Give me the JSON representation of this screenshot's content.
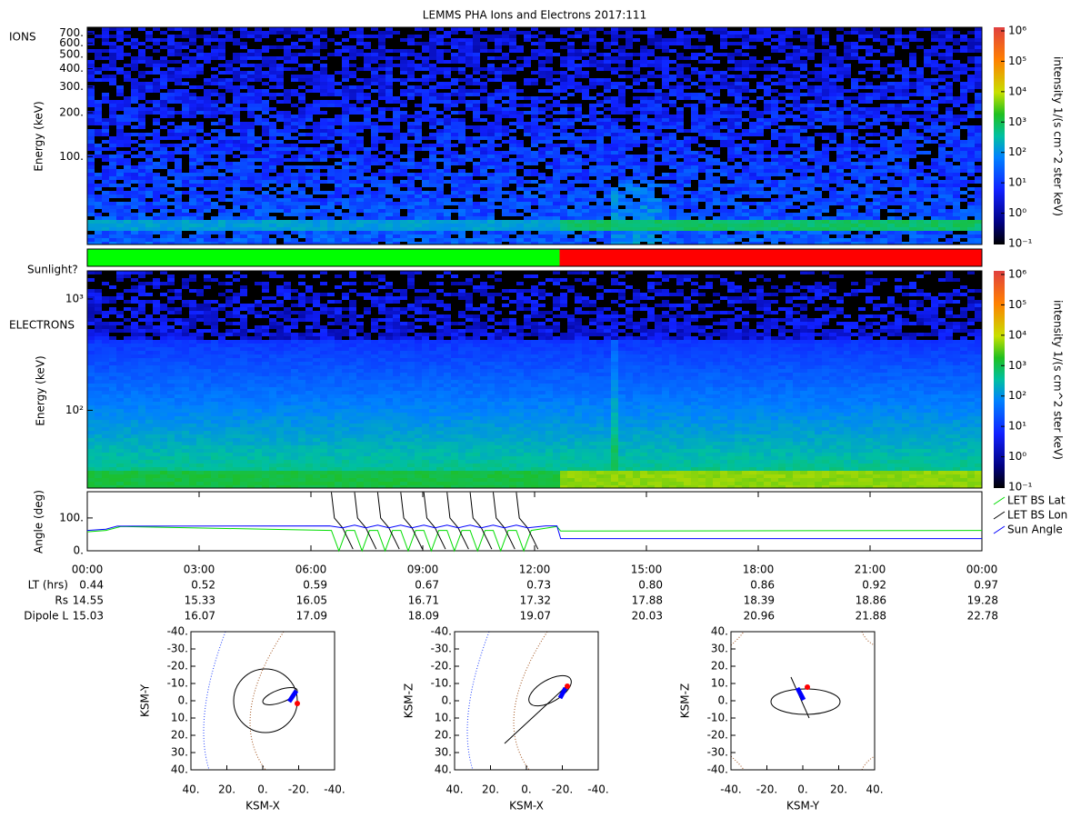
{
  "title": "LEMMS PHA Ions and Electrons  2017:111",
  "xlim": [
    0,
    24
  ],
  "xticks": [
    {
      "value": 0,
      "label": "00:00"
    },
    {
      "value": 3,
      "label": "03:00"
    },
    {
      "value": 6,
      "label": "06:00"
    },
    {
      "value": 9,
      "label": "09:00"
    },
    {
      "value": 12,
      "label": "12:00"
    },
    {
      "value": 15,
      "label": "15:00"
    },
    {
      "value": 18,
      "label": "18:00"
    },
    {
      "value": 21,
      "label": "21:00"
    },
    {
      "value": 24,
      "label": "00:00"
    }
  ],
  "colorbar": {
    "label": "intensity 1/(s cm^2 ster keV)",
    "clim": [
      0.1,
      1000000
    ],
    "ticks": [
      {
        "value": 0.1,
        "label": "10⁻¹"
      },
      {
        "value": 1,
        "label": "10⁰"
      },
      {
        "value": 10,
        "label": "10¹"
      },
      {
        "value": 100,
        "label": "10²"
      },
      {
        "value": 1000,
        "label": "10³"
      },
      {
        "value": 10000,
        "label": "10⁴"
      },
      {
        "value": 100000,
        "label": "10⁵"
      },
      {
        "value": 1000000,
        "label": "10⁶"
      }
    ]
  },
  "ions": {
    "label": "IONS",
    "ylabel": "Energy (keV)",
    "ylim": [
      25,
      770
    ],
    "yticks": [
      {
        "value": 700,
        "label": "700."
      },
      {
        "value": 600,
        "label": "600."
      },
      {
        "value": 500,
        "label": "500."
      },
      {
        "value": 400,
        "label": "400."
      },
      {
        "value": 300,
        "label": "300."
      },
      {
        "value": 200,
        "label": "200."
      },
      {
        "value": 100,
        "label": "100."
      }
    ]
  },
  "sunlight": {
    "label": "Sunlight?",
    "segments": [
      {
        "start": 0,
        "end": 12.67,
        "color": "#00ff00"
      },
      {
        "start": 12.67,
        "end": 24,
        "color": "#ff0000"
      }
    ]
  },
  "electrons": {
    "label": "ELECTRONS",
    "ylabel": "Energy (keV)",
    "ylim": [
      20,
      1790
    ],
    "yticks": [
      {
        "value": 100,
        "label": "10²"
      },
      {
        "value": 1000,
        "label": "10³"
      }
    ]
  },
  "angle": {
    "ylabel": "Angle (deg)",
    "ylim": [
      0,
      180
    ],
    "yticks": [
      {
        "value": 0,
        "label": "0."
      },
      {
        "value": 100,
        "label": "100."
      }
    ],
    "series": [
      {
        "name": "LET BS Lat",
        "color": "#00dd00",
        "x": [
          0,
          0.5,
          0.9,
          6.55,
          6.75,
          6.95,
          7.17,
          7.37,
          7.57,
          7.79,
          7.99,
          8.19,
          8.41,
          8.61,
          8.81,
          9.03,
          9.23,
          9.43,
          9.65,
          9.85,
          10.05,
          10.27,
          10.47,
          10.67,
          10.89,
          11.09,
          11.29,
          11.51,
          11.71,
          11.91,
          12.6,
          12.7,
          24
        ],
        "values": [
          58,
          62,
          74,
          62,
          0,
          62,
          62,
          0,
          62,
          62,
          0,
          62,
          62,
          0,
          62,
          62,
          0,
          62,
          62,
          0,
          62,
          62,
          0,
          62,
          62,
          0,
          62,
          62,
          0,
          62,
          74,
          60,
          62
        ]
      },
      {
        "name": "LET BS Lon",
        "color": "#000000",
        "x": [
          6.55,
          6.63,
          6.85,
          7.13,
          null,
          7.17,
          7.25,
          7.47,
          7.75,
          null,
          7.79,
          7.87,
          8.09,
          8.37,
          null,
          8.41,
          8.49,
          8.71,
          8.99,
          null,
          9.03,
          9.11,
          9.33,
          9.61,
          null,
          9.65,
          9.73,
          9.95,
          10.23,
          null,
          10.27,
          10.35,
          10.57,
          10.85,
          null,
          10.89,
          10.97,
          11.19,
          11.47,
          null,
          11.51,
          11.59,
          11.81,
          12.09
        ],
        "values": [
          178,
          100,
          70,
          5,
          null,
          178,
          100,
          70,
          5,
          null,
          178,
          100,
          70,
          5,
          null,
          178,
          100,
          70,
          5,
          null,
          178,
          100,
          70,
          5,
          null,
          178,
          100,
          70,
          5,
          null,
          178,
          100,
          70,
          5,
          null,
          178,
          100,
          70,
          5,
          null,
          178,
          100,
          70,
          5
        ]
      },
      {
        "name": "Sun Angle",
        "color": "#0000ff",
        "x": [
          0,
          0.5,
          0.8,
          6.5,
          6.85,
          7.17,
          7.47,
          7.79,
          8.09,
          8.41,
          8.71,
          9.03,
          9.33,
          9.65,
          9.95,
          10.27,
          10.57,
          10.89,
          11.19,
          11.51,
          11.81,
          12.3,
          12.6,
          12.7,
          24
        ],
        "values": [
          62,
          66,
          75,
          76,
          70,
          78,
          70,
          78,
          70,
          78,
          70,
          78,
          70,
          78,
          70,
          78,
          70,
          78,
          70,
          78,
          70,
          76,
          76,
          37,
          37
        ]
      }
    ]
  },
  "ephemeris": {
    "rows": [
      {
        "label": "LT (hrs)",
        "values": [
          "0.44",
          "0.52",
          "0.59",
          "0.67",
          "0.73",
          "0.80",
          "0.86",
          "0.92",
          "0.97"
        ]
      },
      {
        "label": "Rs",
        "values": [
          "14.55",
          "15.33",
          "16.05",
          "16.71",
          "17.32",
          "17.88",
          "18.39",
          "18.86",
          "19.28"
        ]
      },
      {
        "label": "Dipole L",
        "values": [
          "15.03",
          "16.07",
          "17.09",
          "18.09",
          "19.07",
          "20.03",
          "20.96",
          "21.88",
          "22.78"
        ]
      }
    ]
  },
  "orbits": [
    {
      "xlabel": "KSM-X",
      "ylabel": "KSM-Y",
      "xlim": [
        40,
        -40
      ],
      "ylim": [
        40,
        -40
      ],
      "xticks": [
        {
          "value": 40,
          "label": "40."
        },
        {
          "value": 20,
          "label": "20."
        },
        {
          "value": 0,
          "label": "0."
        },
        {
          "value": -20,
          "label": "-20."
        },
        {
          "value": -40,
          "label": "-40."
        }
      ],
      "yticks": [
        {
          "value": -40,
          "label": "-40."
        },
        {
          "value": -30,
          "label": "-30."
        },
        {
          "value": -20,
          "label": "-20."
        },
        {
          "value": -10,
          "label": "-10."
        },
        {
          "value": 0,
          "label": "0."
        },
        {
          "value": 10,
          "label": "10."
        },
        {
          "value": 20,
          "label": "20."
        },
        {
          "value": 30,
          "label": "30."
        },
        {
          "value": 40,
          "label": "40."
        }
      ]
    },
    {
      "xlabel": "KSM-X",
      "ylabel": "KSM-Z",
      "xlim": [
        40,
        -40
      ],
      "ylim": [
        40,
        -40
      ],
      "xticks": [
        {
          "value": 40,
          "label": "40."
        },
        {
          "value": 20,
          "label": "20."
        },
        {
          "value": 0,
          "label": "0."
        },
        {
          "value": -20,
          "label": "-20."
        },
        {
          "value": -40,
          "label": "-40."
        }
      ],
      "yticks": [
        {
          "value": -40,
          "label": "-40."
        },
        {
          "value": -30,
          "label": "-30."
        },
        {
          "value": -20,
          "label": "-20."
        },
        {
          "value": -10,
          "label": "-10."
        },
        {
          "value": 0,
          "label": "0."
        },
        {
          "value": 10,
          "label": "10."
        },
        {
          "value": 20,
          "label": "20."
        },
        {
          "value": 30,
          "label": "30."
        },
        {
          "value": 40,
          "label": "40."
        }
      ]
    },
    {
      "xlabel": "KSM-Y",
      "ylabel": "KSM-Z",
      "xlim": [
        -40,
        40
      ],
      "ylim": [
        -40,
        40
      ],
      "xticks": [
        {
          "value": -40,
          "label": "-40."
        },
        {
          "value": -20,
          "label": "-20."
        },
        {
          "value": 0,
          "label": "0."
        },
        {
          "value": 20,
          "label": "20."
        },
        {
          "value": 40,
          "label": "40."
        }
      ],
      "yticks": [
        {
          "value": 40,
          "label": "40."
        },
        {
          "value": 30,
          "label": "30."
        },
        {
          "value": 20,
          "label": "20."
        },
        {
          "value": 10,
          "label": "10."
        },
        {
          "value": 0,
          "label": "0."
        },
        {
          "value": -10,
          "label": "-10."
        },
        {
          "value": -20,
          "label": "-20."
        },
        {
          "value": -30,
          "label": "-30."
        },
        {
          "value": -40,
          "label": "-40."
        }
      ]
    }
  ]
}
